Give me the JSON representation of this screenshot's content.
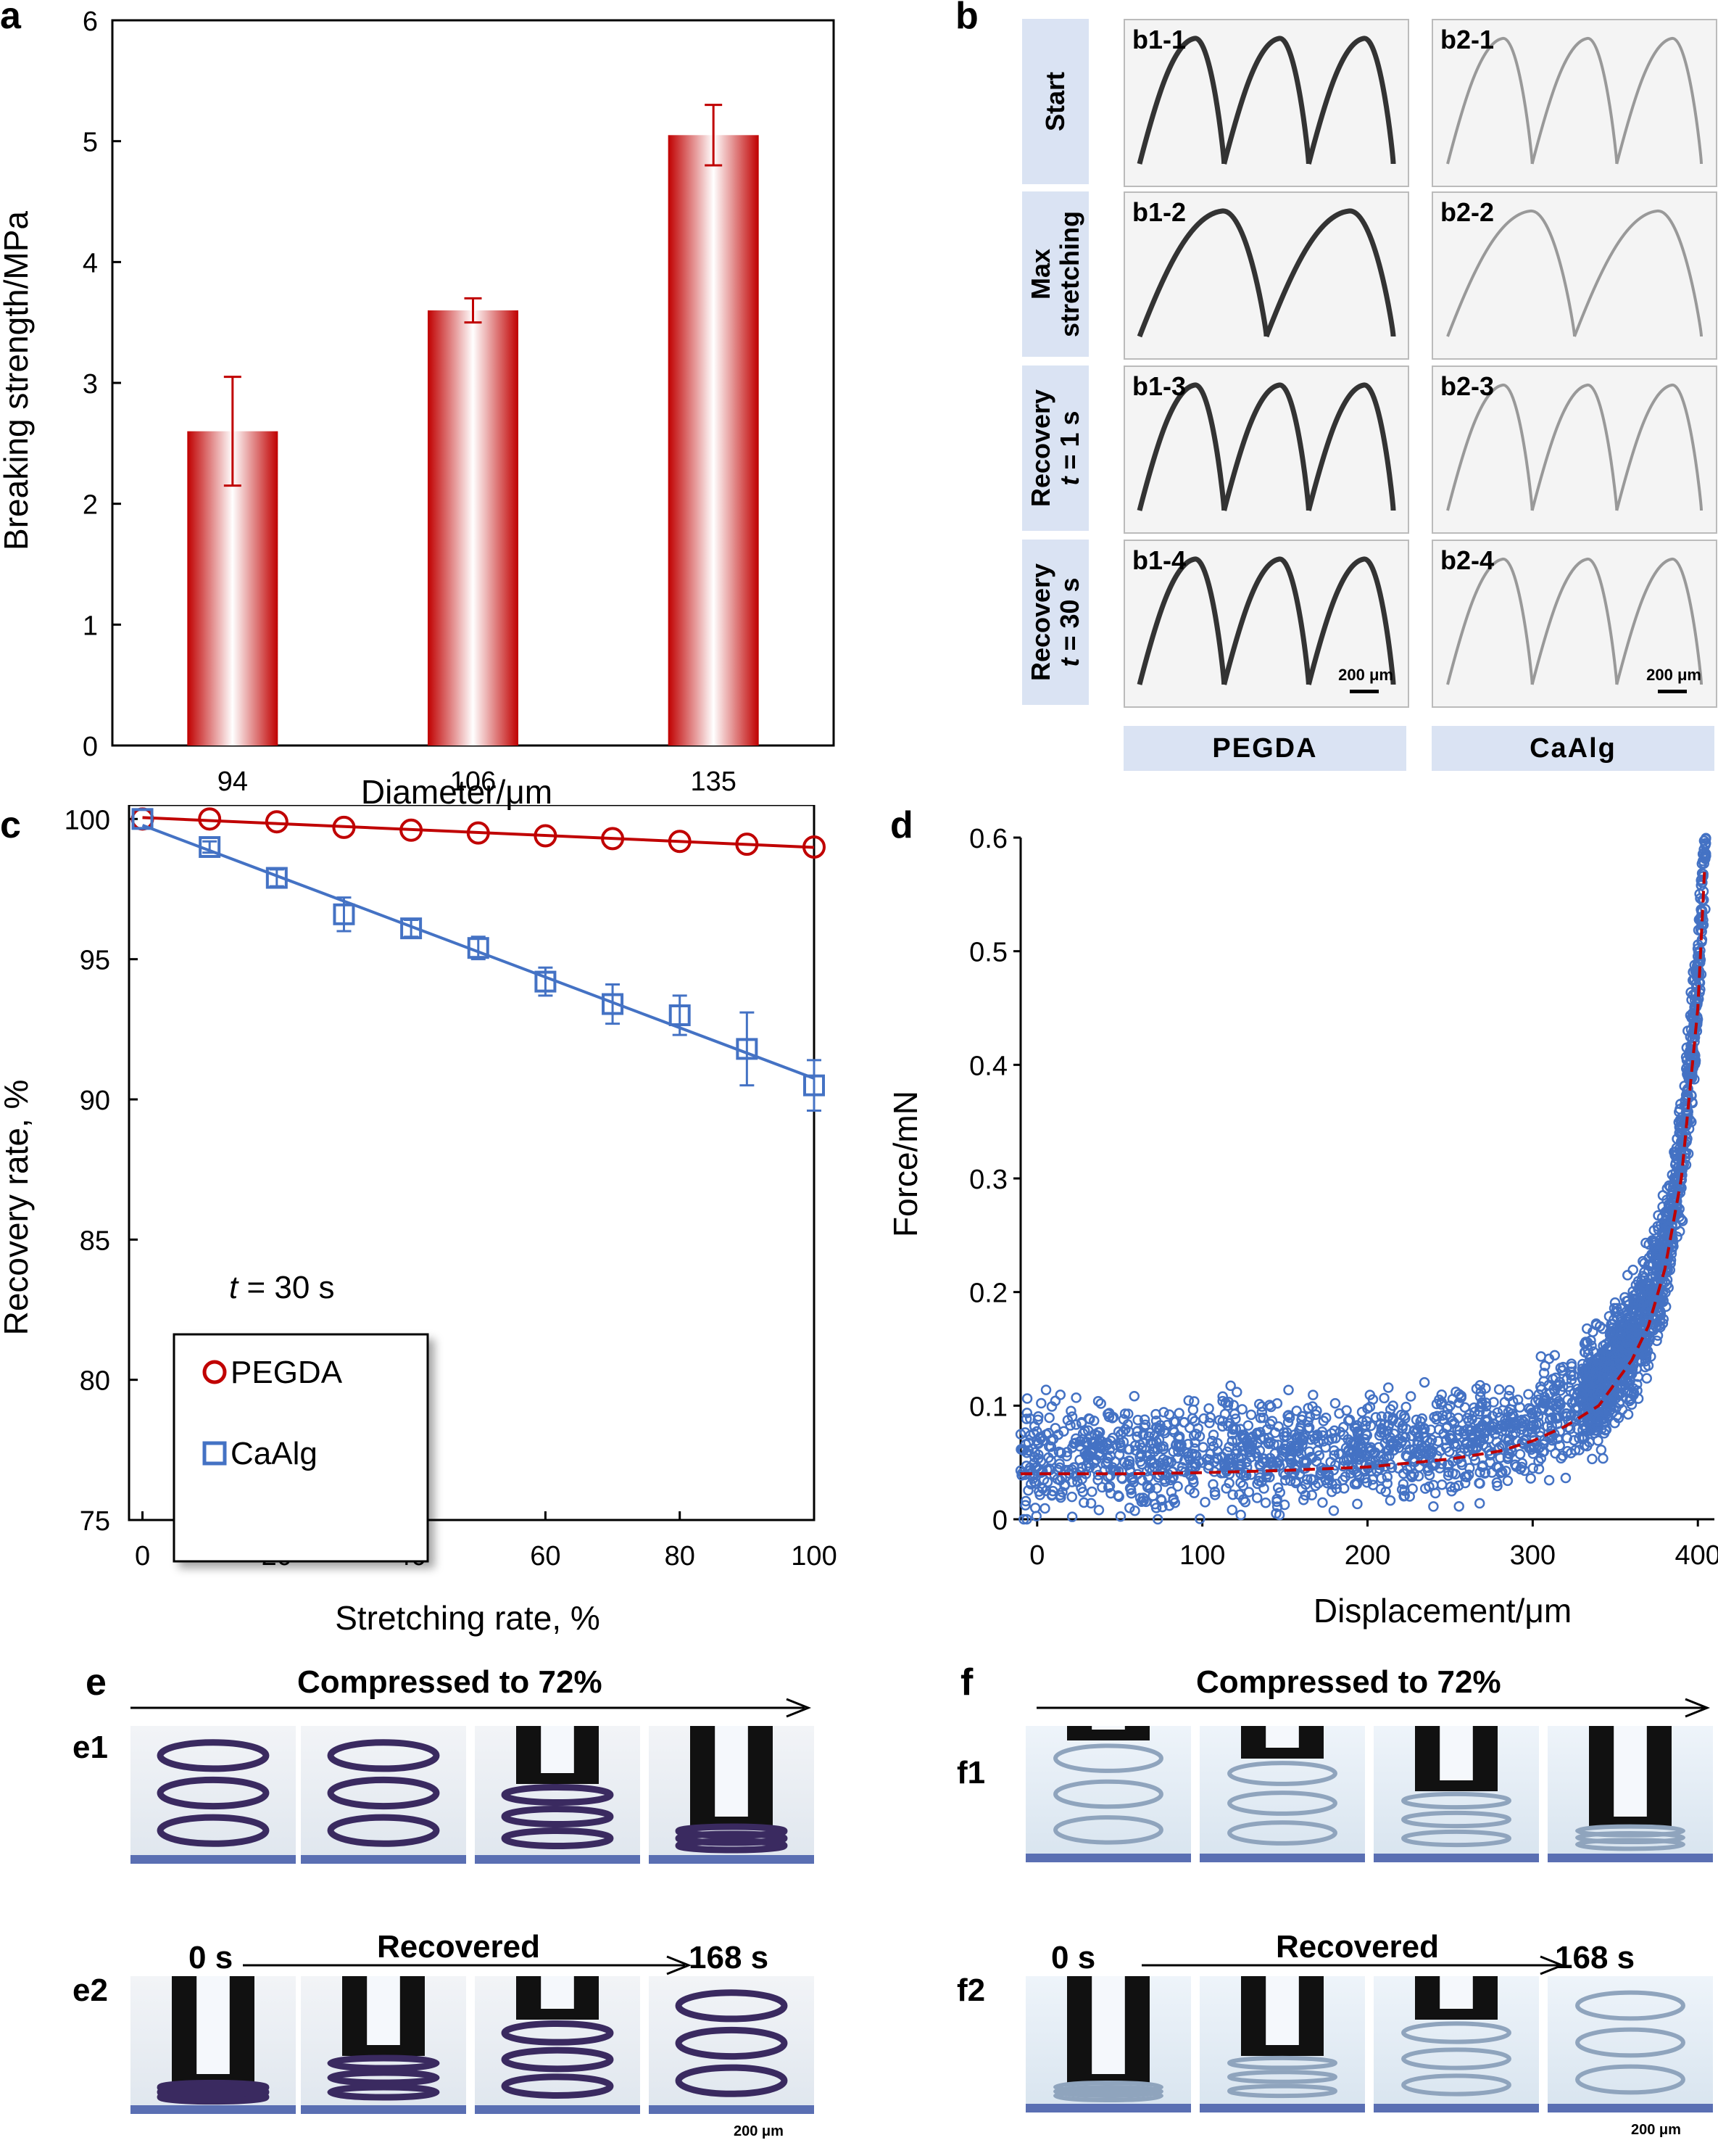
{
  "panel_labels": {
    "a": "a",
    "b": "b",
    "c": "c",
    "d": "d",
    "e": "e",
    "f": "f"
  },
  "chart_data": [
    {
      "panel": "a",
      "type": "bar",
      "categories": [
        "94",
        "106",
        "135"
      ],
      "values": [
        2.6,
        3.6,
        5.05
      ],
      "errors": [
        0.45,
        0.1,
        0.25
      ],
      "xlabel": "Diameter/μm",
      "ylabel": "Breaking strength/MPa",
      "ylim": [
        0,
        6
      ],
      "yticks": [
        "0",
        "1",
        "2",
        "3",
        "4",
        "5",
        "6"
      ],
      "color": "#c00000"
    },
    {
      "panel": "c",
      "type": "line",
      "xlabel": "Stretching rate, %",
      "ylabel": "Recovery rate, %",
      "xlim": [
        -2,
        100
      ],
      "ylim": [
        75,
        100.5
      ],
      "xticks": [
        "0",
        "20",
        "40",
        "60",
        "80",
        "100"
      ],
      "yticks": [
        "75",
        "80",
        "85",
        "90",
        "95",
        "100"
      ],
      "annotation": "t = 30 s",
      "legend_position": "lower-left",
      "series": [
        {
          "name": "PEGDA",
          "color": "#c00000",
          "marker": "circle",
          "x": [
            0,
            10,
            20,
            30,
            40,
            50,
            60,
            70,
            80,
            90,
            100
          ],
          "y": [
            100,
            100,
            99.9,
            99.7,
            99.6,
            99.5,
            99.4,
            99.3,
            99.2,
            99.1,
            99.0
          ],
          "err": [
            0,
            0,
            0,
            0,
            0,
            0,
            0,
            0,
            0,
            0,
            0
          ]
        },
        {
          "name": "CaAlg",
          "color": "#4472c4",
          "marker": "square",
          "x": [
            0,
            10,
            20,
            30,
            40,
            50,
            60,
            70,
            80,
            90,
            100
          ],
          "y": [
            100,
            99.0,
            97.9,
            96.6,
            96.1,
            95.4,
            94.2,
            93.4,
            93.0,
            91.8,
            90.5
          ],
          "err": [
            0,
            0.2,
            0.3,
            0.6,
            0.3,
            0.4,
            0.5,
            0.7,
            0.7,
            1.3,
            0.9
          ]
        }
      ]
    },
    {
      "panel": "d",
      "type": "scatter",
      "xlabel": "Displacement/μm",
      "ylabel": "Force/mN",
      "xlim": [
        -10,
        410
      ],
      "ylim": [
        0,
        0.6
      ],
      "xticks": [
        "0",
        "100",
        "200",
        "300",
        "400"
      ],
      "yticks": [
        "0",
        "0.1",
        "0.2",
        "0.3",
        "0.4",
        "0.5",
        "0.6"
      ],
      "series": [
        {
          "name": "",
          "color": "#4472c4",
          "marker": "circle",
          "description_points": "dense noisy cloud around fit"
        },
        {
          "name": "",
          "color": "#c00000",
          "style": "dashed",
          "fit_x": [
            0,
            50,
            100,
            150,
            200,
            250,
            280,
            300,
            320,
            340,
            360,
            370,
            380,
            390,
            400,
            405
          ],
          "fit_y": [
            0.04,
            0.04,
            0.041,
            0.043,
            0.046,
            0.053,
            0.06,
            0.069,
            0.082,
            0.1,
            0.14,
            0.17,
            0.22,
            0.3,
            0.45,
            0.6
          ]
        }
      ]
    }
  ],
  "panel_b": {
    "row_labels": [
      [
        "Start"
      ],
      [
        "Max",
        "stretching"
      ],
      [
        "Recovery",
        "t = 1 s"
      ],
      [
        "Recovery",
        "t = 30 s"
      ]
    ],
    "cells": [
      [
        "b1-1",
        "b2-1"
      ],
      [
        "b1-2",
        "b2-2"
      ],
      [
        "b1-3",
        "b2-3"
      ],
      [
        "b1-4",
        "b2-4"
      ]
    ],
    "col_labels": [
      "PEGDA",
      "CaAlg"
    ],
    "scalebar": "200 μm"
  },
  "panel_e": {
    "header": "Compressed to 72%",
    "row1": "e1",
    "row2": "e2",
    "recovered": "Recovered",
    "start_time": "0 s",
    "end_time": "168 s",
    "scalebar": "200 μm"
  },
  "panel_f": {
    "header": "Compressed to 72%",
    "row1": "f1",
    "row2": "f2",
    "recovered": "Recovered",
    "start_time": "0 s",
    "end_time": "168 s",
    "scalebar": "200 μm"
  }
}
